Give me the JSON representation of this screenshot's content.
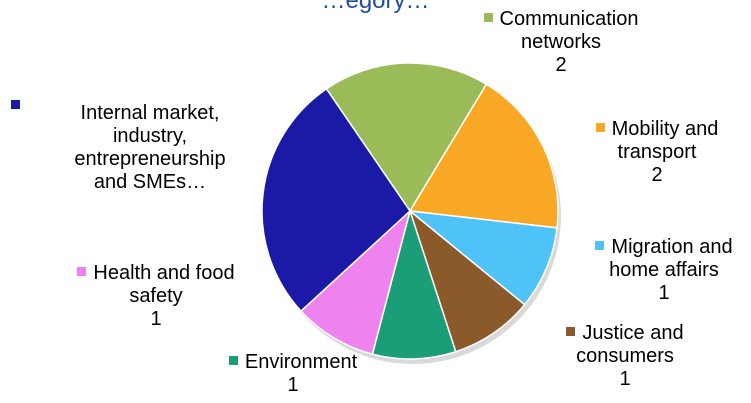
{
  "chart_data": {
    "type": "pie",
    "title": "…egory…",
    "slices": [
      {
        "label": "Communication networks",
        "display_label": "Communication\nnetworks",
        "value": 2,
        "color": "#9bbb59"
      },
      {
        "label": "Mobility and transport",
        "display_label": "Mobility and\ntransport",
        "value": 2,
        "color": "#f9a825"
      },
      {
        "label": "Migration and home affairs",
        "display_label": "Migration and\nhome affairs",
        "value": 1,
        "color": "#4fc3f7"
      },
      {
        "label": "Justice and consumers",
        "display_label": "Justice and\nconsumers",
        "value": 1,
        "color": "#8b5a2b"
      },
      {
        "label": "Environment",
        "display_label": "Environment",
        "value": 1,
        "color": "#1b9e77"
      },
      {
        "label": "Health and food safety",
        "display_label": "Health and food\nsafety",
        "value": 1,
        "color": "#ee82ee"
      },
      {
        "label": "Internal market, industry, entrepreneurship and SMEs…",
        "display_label": "Internal market,\nindustry,\nentrepreneurship\nand SMEs…",
        "value": 3,
        "color": "#1a1aa6"
      }
    ]
  }
}
